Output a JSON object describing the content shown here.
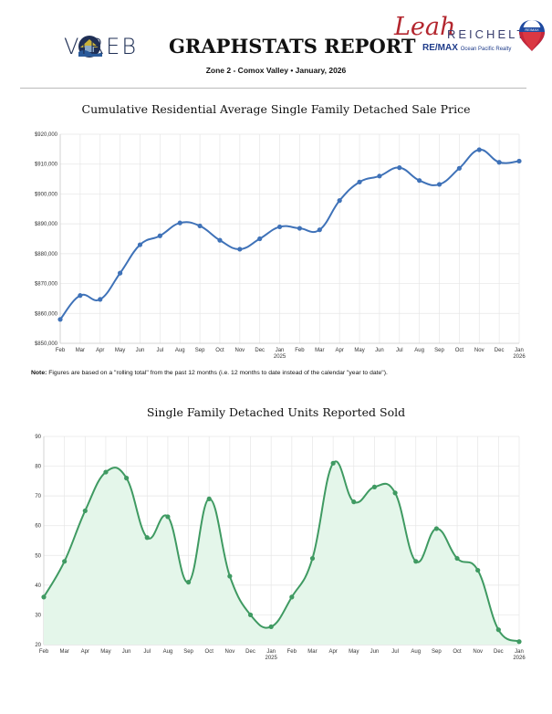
{
  "header": {
    "logo_left": "VIREB",
    "title": "GRAPHSTATS REPORT",
    "subtitle": "Zone 2 - Comox Valley  •  January, 2026",
    "agent_first": "Leah",
    "agent_last": "REICHELT",
    "brokerage": "RE/MAX",
    "brokerage_sub": "Ocean Pacific Realty",
    "balloon_label": "RE/MAX"
  },
  "note": {
    "label": "Note:",
    "text": " Figures are based on a \"rolling total\" from the past 12 months (i.e. 12 months to date instead of the calendar \"year to date\")."
  },
  "chart_data": [
    {
      "type": "line",
      "title": "Cumulative Residential Average Single Family Detached Sale Price",
      "categories": [
        "Feb",
        "Mar",
        "Apr",
        "May",
        "Jun",
        "Jul",
        "Aug",
        "Sep",
        "Oct",
        "Nov",
        "Dec",
        "Jan",
        "Feb",
        "Mar",
        "Apr",
        "May",
        "Jun",
        "Jul",
        "Aug",
        "Sep",
        "Oct",
        "Nov",
        "Dec",
        "Jan"
      ],
      "year_labels": {
        "11": "2025",
        "23": "2026"
      },
      "values": [
        858000,
        866000,
        864700,
        873500,
        883000,
        886000,
        890300,
        889300,
        884500,
        881500,
        885000,
        889000,
        888500,
        888000,
        897800,
        904000,
        906000,
        908800,
        904500,
        903200,
        908600,
        914800,
        910600,
        911000
      ],
      "yticks": [
        "$850,000",
        "$860,000",
        "$870,000",
        "$880,000",
        "$890,000",
        "$900,000",
        "$910,000",
        "$920,000"
      ],
      "ylim": [
        850000,
        920000
      ],
      "grid": true,
      "color": "#3f72b8",
      "fill": false
    },
    {
      "type": "area",
      "title": "Single Family Detached Units Reported Sold",
      "categories": [
        "Feb",
        "Mar",
        "Apr",
        "May",
        "Jun",
        "Jul",
        "Aug",
        "Sep",
        "Oct",
        "Nov",
        "Dec",
        "Jan",
        "Feb",
        "Mar",
        "Apr",
        "May",
        "Jun",
        "Jul",
        "Aug",
        "Sep",
        "Oct",
        "Nov",
        "Dec",
        "Jan"
      ],
      "year_labels": {
        "11": "2025",
        "23": "2026"
      },
      "values": [
        36,
        48,
        65,
        78,
        76,
        56,
        63,
        41,
        69,
        43,
        30,
        26,
        36,
        49,
        81,
        68,
        73,
        71,
        48,
        59,
        49,
        45,
        25,
        21
      ],
      "yticks": [
        "20",
        "30",
        "40",
        "50",
        "60",
        "70",
        "80",
        "90"
      ],
      "ylim": [
        20,
        90
      ],
      "grid": true,
      "color": "#3f9a62",
      "fill_color": "#e4f6ea"
    }
  ]
}
